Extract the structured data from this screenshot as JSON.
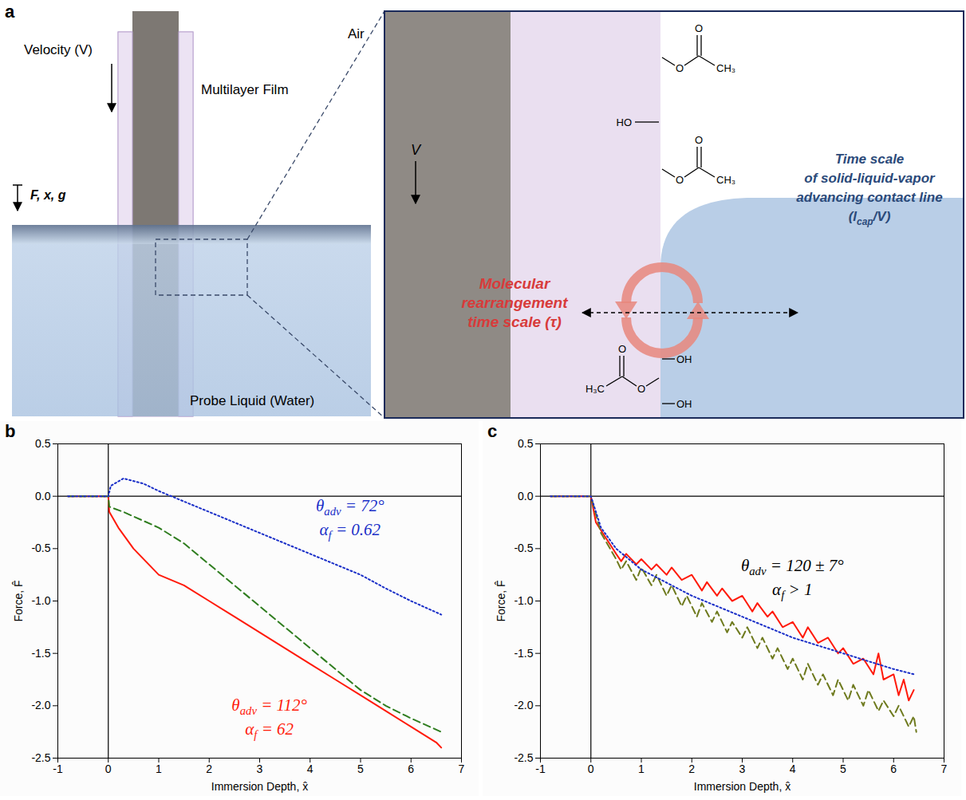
{
  "diagram": {
    "panel_label": "a",
    "labels": {
      "air": "Air",
      "film": "Multilayer Film",
      "velocity": "Velocity (V)",
      "force": "F, x, g",
      "liquid": "Probe Liquid (Water)",
      "zoom_velocity": "V",
      "molecular": [
        "Molecular",
        "rearrangement",
        "time scale (τ)"
      ],
      "contact_line": [
        [
          "Time scale",
          "",
          ""
        ],
        [
          "of solid-liquid-vapor",
          "",
          ""
        ],
        [
          "advancing contact line",
          "",
          ""
        ],
        [
          "(l",
          "cap",
          "/V)"
        ]
      ]
    },
    "chemistry": {
      "carbonyl_oxygen": "O",
      "ester_oxygen": "O",
      "methyl_right": "CH₃",
      "methyl_left": "H₃C",
      "hydroxyl_left": "HO",
      "hydroxyl_right": "OH"
    }
  },
  "chart_data": [
    {
      "type": "line",
      "panel_label": "b",
      "x_label": "Immersion Depth, x̂",
      "y_label": "Force, F̂",
      "xlim": [
        -1,
        7
      ],
      "xticks": [
        -1,
        0,
        1,
        2,
        3,
        4,
        5,
        6,
        7
      ],
      "ylim": [
        -2.5,
        0.5
      ],
      "yticks": [
        {
          "value": -2.5,
          "label": "-2.5"
        },
        {
          "value": -2,
          "label": "-2.0"
        },
        {
          "value": -1.5,
          "label": "-1.5"
        },
        {
          "value": -1,
          "label": "-1.0"
        },
        {
          "value": -0.5,
          "label": "-0.5"
        },
        {
          "value": 0,
          "label": "0.0"
        },
        {
          "value": 0.5,
          "label": "0.5"
        }
      ],
      "grid": false,
      "rules": {
        "x": [
          0
        ],
        "y": [
          0
        ]
      },
      "series": [
        {
          "color": "#ff1a0a",
          "line_style": "solid",
          "x": [
            -0.8,
            0,
            0.02,
            0.2,
            0.5,
            1,
            1.5,
            2,
            2.5,
            3,
            3.5,
            4,
            4.5,
            5,
            5.5,
            6,
            6.5,
            6.6
          ],
          "values": [
            0,
            0,
            -0.15,
            -0.3,
            -0.5,
            -0.75,
            -0.85,
            -1.0,
            -1.15,
            -1.3,
            -1.45,
            -1.6,
            -1.75,
            -1.9,
            -2.05,
            -2.2,
            -2.35,
            -2.4
          ]
        },
        {
          "color": "#2f7d1f",
          "line_style": "dashed",
          "x": [
            -0.8,
            0,
            0.02,
            0.3,
            1,
            1.5,
            2,
            2.5,
            3,
            3.5,
            4,
            4.5,
            5,
            5.5,
            6,
            6.6
          ],
          "values": [
            0,
            0,
            -0.1,
            -0.15,
            -0.3,
            -0.45,
            -0.65,
            -0.85,
            -1.05,
            -1.25,
            -1.45,
            -1.65,
            -1.85,
            -2.0,
            -2.12,
            -2.25
          ]
        },
        {
          "color": "#1a2fc8",
          "line_style": "dotted",
          "x": [
            -0.8,
            0,
            0.05,
            0.3,
            0.7,
            1,
            1.5,
            2,
            2.5,
            3,
            3.5,
            4,
            4.5,
            5,
            5.5,
            6,
            6.6
          ],
          "values": [
            0,
            0,
            0.1,
            0.17,
            0.12,
            0.05,
            -0.05,
            -0.15,
            -0.25,
            -0.35,
            -0.45,
            -0.55,
            -0.65,
            -0.75,
            -0.88,
            -1.0,
            -1.13
          ]
        }
      ],
      "annotations": [
        {
          "x": 4.8,
          "y": -0.15,
          "color": "#1a2fc8",
          "lines": [
            [
              "θ",
              "adv",
              " = 72°"
            ],
            [
              "α",
              "f",
              " = 0.62"
            ]
          ]
        },
        {
          "x": 3.2,
          "y": -2.05,
          "color": "#ff1a0a",
          "lines": [
            [
              "θ",
              "adv",
              " = 112°"
            ],
            [
              "α",
              "f",
              " = 62"
            ]
          ]
        }
      ]
    },
    {
      "type": "line",
      "panel_label": "c",
      "x_label": "Immersion Depth, x̂",
      "y_label": "Force, F̂",
      "xlim": [
        -1,
        7
      ],
      "xticks": [
        -1,
        0,
        1,
        2,
        3,
        4,
        5,
        6,
        7
      ],
      "ylim": [
        -2.5,
        0.5
      ],
      "yticks": [
        {
          "value": -2.5,
          "label": "-2.5"
        },
        {
          "value": -2,
          "label": "-2.0"
        },
        {
          "value": -1.5,
          "label": "-1.5"
        },
        {
          "value": -1,
          "label": "-1.0"
        },
        {
          "value": -0.5,
          "label": "-0.5"
        },
        {
          "value": 0,
          "label": "0.0"
        },
        {
          "value": 0.5,
          "label": "0.5"
        }
      ],
      "grid": false,
      "rules": {
        "x": [
          0
        ],
        "y": [
          0
        ]
      },
      "series": [
        {
          "color": "#ff1a0a",
          "line_style": "solid",
          "x": [
            -0.8,
            0,
            0.1,
            0.3,
            0.5,
            0.6,
            0.7,
            0.9,
            1.0,
            1.2,
            1.3,
            1.5,
            1.6,
            1.8,
            2.0,
            2.2,
            2.3,
            2.5,
            2.6,
            2.8,
            3.0,
            3.2,
            3.3,
            3.5,
            3.6,
            3.8,
            4.0,
            4.2,
            4.3,
            4.5,
            4.7,
            4.9,
            5.0,
            5.2,
            5.4,
            5.6,
            5.7,
            5.8,
            6.0,
            6.1,
            6.2,
            6.3,
            6.4
          ],
          "values": [
            0,
            0,
            -0.25,
            -0.4,
            -0.55,
            -0.62,
            -0.55,
            -0.65,
            -0.6,
            -0.7,
            -0.65,
            -0.75,
            -0.68,
            -0.8,
            -0.75,
            -0.9,
            -0.82,
            -0.95,
            -0.88,
            -1.0,
            -0.95,
            -1.1,
            -1.02,
            -1.15,
            -1.1,
            -1.25,
            -1.2,
            -1.35,
            -1.25,
            -1.4,
            -1.35,
            -1.5,
            -1.45,
            -1.6,
            -1.55,
            -1.7,
            -1.5,
            -1.75,
            -1.7,
            -1.9,
            -1.75,
            -1.95,
            -1.85
          ]
        },
        {
          "color": "#6e7a1e",
          "line_style": "dashed",
          "x": [
            -0.8,
            0,
            0.2,
            0.5,
            0.6,
            0.7,
            0.9,
            1.0,
            1.2,
            1.3,
            1.5,
            1.6,
            1.8,
            1.9,
            2.1,
            2.2,
            2.4,
            2.5,
            2.7,
            2.8,
            3.0,
            3.1,
            3.3,
            3.4,
            3.6,
            3.7,
            3.9,
            4.0,
            4.2,
            4.3,
            4.5,
            4.6,
            4.8,
            4.9,
            5.1,
            5.2,
            5.4,
            5.5,
            5.7,
            5.8,
            6.0,
            6.1,
            6.3,
            6.4,
            6.45
          ],
          "values": [
            0,
            0,
            -0.35,
            -0.6,
            -0.7,
            -0.62,
            -0.8,
            -0.68,
            -0.85,
            -0.75,
            -0.95,
            -0.85,
            -1.05,
            -0.95,
            -1.15,
            -1.02,
            -1.2,
            -1.1,
            -1.3,
            -1.2,
            -1.35,
            -1.25,
            -1.45,
            -1.35,
            -1.55,
            -1.45,
            -1.65,
            -1.55,
            -1.75,
            -1.6,
            -1.8,
            -1.7,
            -1.9,
            -1.75,
            -1.95,
            -1.8,
            -2.0,
            -1.85,
            -2.05,
            -1.95,
            -2.1,
            -2.0,
            -2.2,
            -2.1,
            -2.25
          ]
        },
        {
          "color": "#1a2fc8",
          "line_style": "dotted",
          "x": [
            -0.8,
            0,
            0.2,
            0.5,
            1,
            2,
            3,
            4,
            5,
            6,
            6.4
          ],
          "values": [
            0,
            0,
            -0.3,
            -0.5,
            -0.7,
            -0.95,
            -1.15,
            -1.35,
            -1.5,
            -1.65,
            -1.7
          ]
        }
      ],
      "annotations": [
        {
          "x": 4.0,
          "y": -0.72,
          "color": "#000000",
          "lines": [
            [
              "θ",
              "adv",
              " = 120 ± 7°"
            ],
            [
              "α",
              "f",
              " > 1"
            ]
          ]
        }
      ]
    }
  ]
}
